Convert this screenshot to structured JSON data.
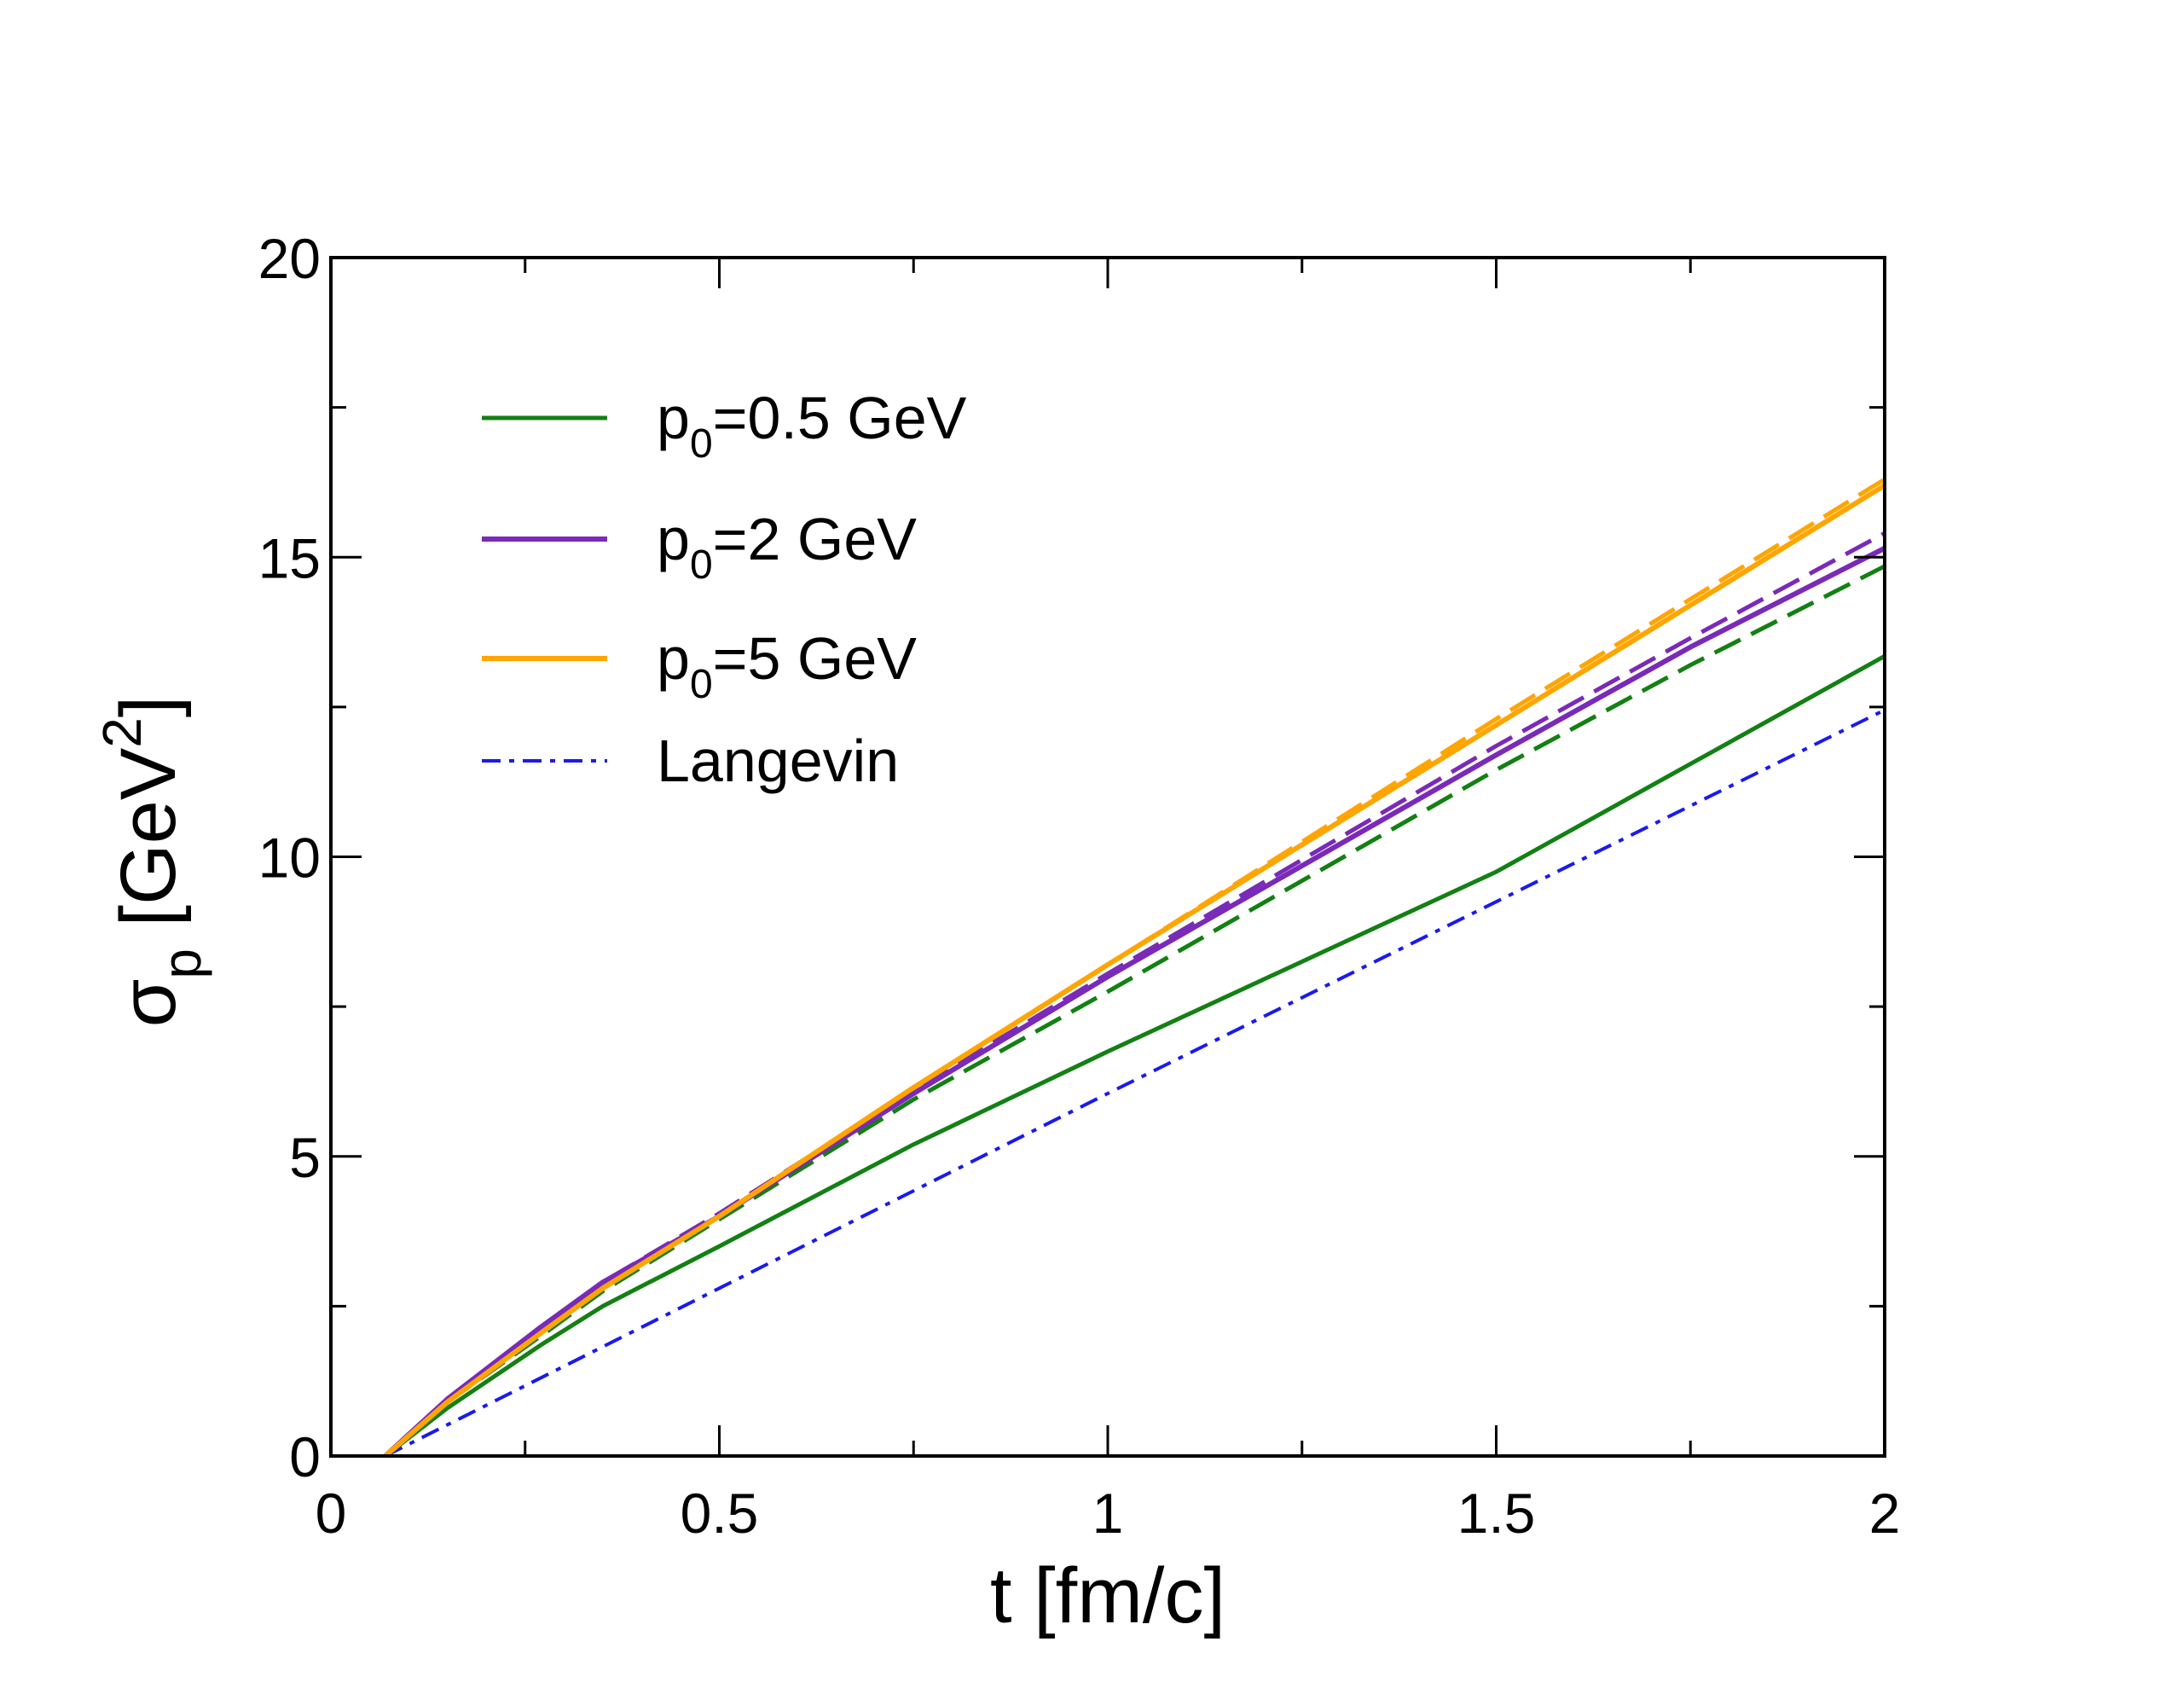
{
  "chart_data": {
    "type": "line",
    "title": "",
    "xlabel": "t [fm/c]",
    "ylabel": {
      "symbol": "σ",
      "subscript": "p",
      "unit": "[GeV",
      "superscript": "2",
      "close": "]"
    },
    "xlim": [
      0,
      2
    ],
    "ylim": [
      0,
      20
    ],
    "xticks": [
      0,
      0.5,
      1,
      1.5,
      2
    ],
    "xtick_labels": [
      "0",
      "0.5",
      "1",
      "1.5",
      "2"
    ],
    "yticks": [
      0,
      5,
      10,
      15,
      20
    ],
    "ytick_labels": [
      "0",
      "5",
      "10",
      "15",
      "20"
    ],
    "grid": false,
    "legend_position": "top-left",
    "legend": [
      {
        "prefix": "p",
        "sub": "0",
        "suffix": "=0.5 GeV",
        "color": "#138013",
        "style": "solid"
      },
      {
        "prefix": "p",
        "sub": "0",
        "suffix": "=2 GeV",
        "color": "#7a2ab8",
        "style": "solid"
      },
      {
        "prefix": "p",
        "sub": "0",
        "suffix": "=5 GeV",
        "color": "#ffa500",
        "style": "solid"
      },
      {
        "prefix": "Langevin",
        "sub": "",
        "suffix": "",
        "color": "#1a1aee",
        "style": "dashdot"
      }
    ],
    "series": [
      {
        "name": "p0=0.5 GeV",
        "style": "solid",
        "color": "#138013",
        "width": 5,
        "x": [
          0.07,
          0.15,
          0.27,
          0.35,
          0.5,
          0.75,
          1.0,
          1.25,
          1.5,
          1.75,
          2.0
        ],
        "y": [
          0,
          0.8,
          1.85,
          2.5,
          3.5,
          5.2,
          6.75,
          8.25,
          9.75,
          11.55,
          13.35
        ]
      },
      {
        "name": "p0=0.5 GeV (dashed)",
        "style": "dashed",
        "color": "#138013",
        "width": 5,
        "x": [
          0.07,
          0.15,
          0.27,
          0.35,
          0.5,
          0.75,
          1.0,
          1.25,
          1.5,
          1.75,
          2.0
        ],
        "y": [
          0,
          0.9,
          2.0,
          2.75,
          3.95,
          5.95,
          7.75,
          9.6,
          11.45,
          13.2,
          14.85
        ]
      },
      {
        "name": "p0=2 GeV",
        "style": "solid",
        "color": "#7a2ab8",
        "width": 6,
        "x": [
          0.07,
          0.15,
          0.27,
          0.35,
          0.5,
          0.75,
          1.0,
          1.25,
          1.5,
          1.75,
          2.0
        ],
        "y": [
          0,
          0.95,
          2.15,
          2.9,
          4.0,
          6.05,
          8.0,
          9.85,
          11.7,
          13.5,
          15.15
        ]
      },
      {
        "name": "p0=2 GeV (dashed)",
        "style": "dashed",
        "color": "#7a2ab8",
        "width": 5,
        "x": [
          0.07,
          0.15,
          0.27,
          0.35,
          0.5,
          0.75,
          1.0,
          1.25,
          1.5,
          1.75,
          2.0
        ],
        "y": [
          0,
          0.95,
          2.15,
          2.9,
          4.05,
          6.1,
          8.05,
          9.95,
          11.85,
          13.65,
          15.4
        ]
      },
      {
        "name": "p0=5 GeV",
        "style": "solid",
        "color": "#ffa500",
        "width": 6,
        "x": [
          0.07,
          0.15,
          0.27,
          0.35,
          0.5,
          0.75,
          1.0,
          1.25,
          1.5,
          1.75,
          2.0
        ],
        "y": [
          0,
          0.9,
          2.05,
          2.8,
          4.0,
          6.15,
          8.2,
          10.2,
          12.2,
          14.2,
          16.2
        ]
      },
      {
        "name": "p0=5 GeV (dashed)",
        "style": "dashed",
        "color": "#ffa500",
        "width": 5,
        "x": [
          0.07,
          0.15,
          0.27,
          0.35,
          0.5,
          0.75,
          1.0,
          1.25,
          1.5,
          1.75,
          2.0
        ],
        "y": [
          0,
          0.9,
          2.05,
          2.8,
          4.0,
          6.15,
          8.2,
          10.25,
          12.3,
          14.3,
          16.3
        ]
      },
      {
        "name": "Langevin",
        "style": "dashdot",
        "color": "#1a1aee",
        "width": 4,
        "x": [
          0.07,
          0.5,
          1.0,
          1.5,
          2.0
        ],
        "y": [
          0,
          2.8,
          6.05,
          9.25,
          12.45
        ]
      }
    ]
  }
}
